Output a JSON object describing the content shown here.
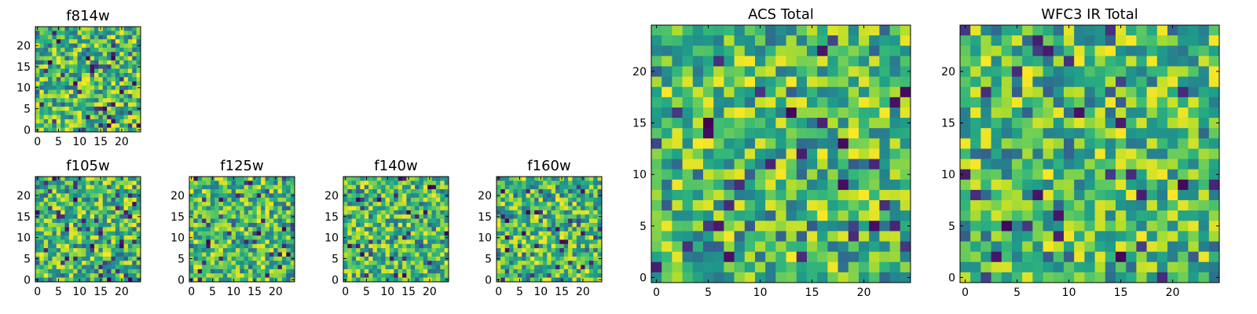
{
  "chart_data": [
    {
      "type": "heatmap",
      "title": "f814w",
      "grid": false,
      "xlim": [
        -0.5,
        24.5
      ],
      "ylim": [
        -0.5,
        24.5
      ],
      "xticks": [
        0,
        5,
        10,
        15,
        20
      ],
      "yticks": [
        0,
        5,
        10,
        15,
        20
      ],
      "colormap": "viridis",
      "rows": 25,
      "cols": 25,
      "seed": 11
    },
    {
      "type": "heatmap",
      "title": "f105w",
      "grid": false,
      "xlim": [
        -0.5,
        24.5
      ],
      "ylim": [
        -0.5,
        24.5
      ],
      "xticks": [
        0,
        5,
        10,
        15,
        20
      ],
      "yticks": [
        0,
        5,
        10,
        15,
        20
      ],
      "colormap": "viridis",
      "rows": 25,
      "cols": 25,
      "seed": 23
    },
    {
      "type": "heatmap",
      "title": "f125w",
      "grid": false,
      "xlim": [
        -0.5,
        24.5
      ],
      "ylim": [
        -0.5,
        24.5
      ],
      "xticks": [
        0,
        5,
        10,
        15,
        20
      ],
      "yticks": [
        0,
        5,
        10,
        15,
        20
      ],
      "colormap": "viridis",
      "rows": 25,
      "cols": 25,
      "seed": 37
    },
    {
      "type": "heatmap",
      "title": "f140w",
      "grid": false,
      "xlim": [
        -0.5,
        24.5
      ],
      "ylim": [
        -0.5,
        24.5
      ],
      "xticks": [
        0,
        5,
        10,
        15,
        20
      ],
      "yticks": [
        0,
        5,
        10,
        15,
        20
      ],
      "colormap": "viridis",
      "rows": 25,
      "cols": 25,
      "seed": 41
    },
    {
      "type": "heatmap",
      "title": "f160w",
      "grid": false,
      "xlim": [
        -0.5,
        24.5
      ],
      "ylim": [
        -0.5,
        24.5
      ],
      "xticks": [
        0,
        5,
        10,
        15,
        20
      ],
      "yticks": [
        0,
        5,
        10,
        15,
        20
      ],
      "colormap": "viridis",
      "rows": 25,
      "cols": 25,
      "seed": 53
    },
    {
      "type": "heatmap",
      "title": "ACS Total",
      "grid": false,
      "xlim": [
        -0.5,
        24.5
      ],
      "ylim": [
        -0.5,
        24.5
      ],
      "xticks": [
        0,
        5,
        10,
        15,
        20
      ],
      "yticks": [
        0,
        5,
        10,
        15,
        20
      ],
      "colormap": "viridis",
      "rows": 25,
      "cols": 25,
      "seed": 67
    },
    {
      "type": "heatmap",
      "title": "WFC3 IR Total",
      "grid": false,
      "xlim": [
        -0.5,
        24.5
      ],
      "ylim": [
        -0.5,
        24.5
      ],
      "xticks": [
        0,
        5,
        10,
        15,
        20
      ],
      "yticks": [
        0,
        5,
        10,
        15,
        20
      ],
      "colormap": "viridis",
      "rows": 25,
      "cols": 25,
      "seed": 79
    }
  ]
}
